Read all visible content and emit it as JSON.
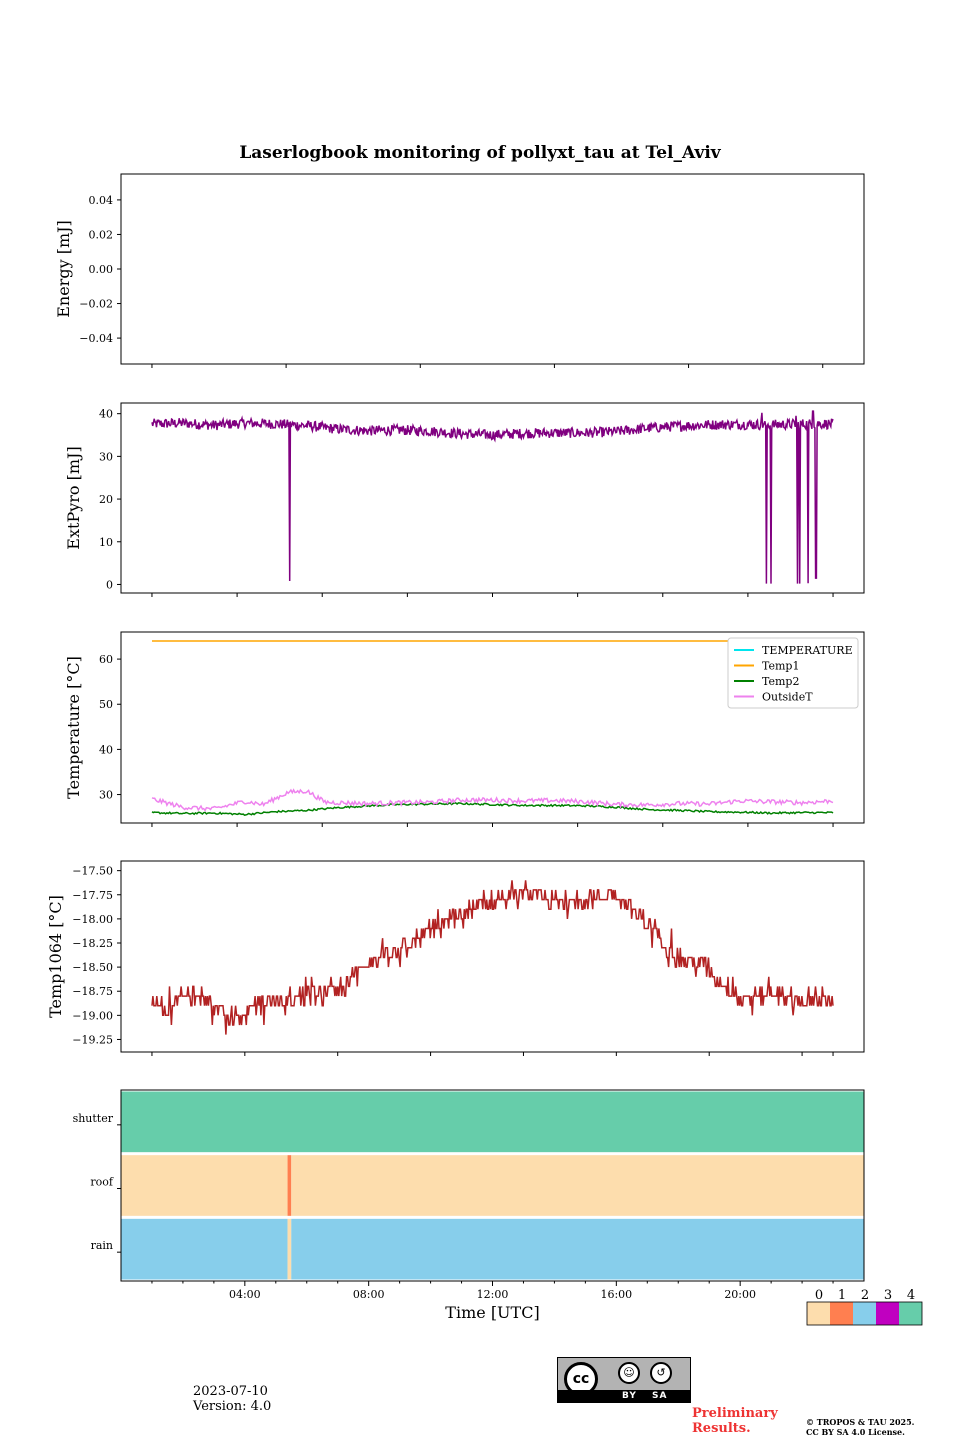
{
  "title": "Laserlogbook monitoring of pollyxt_tau at Tel_Aviv",
  "footer": {
    "date": "2023-07-10",
    "version": "Version: 4.0",
    "preliminary": "Preliminary Results.",
    "copyright_line1": "© TROPOS & TAU 2025.",
    "copyright_line2": "CC BY SA 4.0 License.",
    "license_badge": {
      "logo": "cc",
      "labels": [
        "BY",
        "SA"
      ]
    }
  },
  "chart_data": [
    {
      "type": "line",
      "ylabel": "Energy [mJ]",
      "ylim": [
        -0.055,
        0.055
      ],
      "yticks": [
        -0.04,
        -0.02,
        0.0,
        0.02,
        0.04
      ],
      "ytick_labels": [
        "−0.04",
        "−0.02",
        "0.00",
        "0.02",
        "0.04"
      ],
      "xticks_hours": [
        1,
        5.333,
        9.667,
        14,
        18.333,
        22.667
      ],
      "series": []
    },
    {
      "type": "line",
      "ylabel": "ExtPyro [mJ]",
      "ylim": [
        -2,
        42.5
      ],
      "yticks": [
        0,
        10,
        20,
        30,
        40
      ],
      "xticks_hours": [
        1,
        3.75,
        6.5,
        9.25,
        12,
        14.75,
        17.5,
        20.25,
        23
      ],
      "series": [
        {
          "color": "#800080",
          "baseline": [
            [
              1,
              37.6
            ],
            [
              2,
              37.8
            ],
            [
              3,
              37.3
            ],
            [
              4,
              37.8
            ],
            [
              5,
              37.6
            ],
            [
              6,
              37.2
            ],
            [
              7,
              36.4
            ],
            [
              8,
              36.0
            ],
            [
              9,
              36.2
            ],
            [
              10,
              35.9
            ],
            [
              11,
              35.3
            ],
            [
              12,
              35.0
            ],
            [
              13,
              35.4
            ],
            [
              14,
              35.5
            ],
            [
              15,
              35.5
            ],
            [
              16,
              35.8
            ],
            [
              17,
              36.6
            ],
            [
              18,
              37.1
            ],
            [
              19,
              37.4
            ],
            [
              20,
              37.5
            ],
            [
              21,
              37.4
            ],
            [
              22,
              37.6
            ],
            [
              23,
              37.6
            ]
          ],
          "noise": 1.2,
          "dropouts": [
            [
              5.45,
              0.8
            ],
            [
              20.85,
              0.2
            ],
            [
              21.0,
              0.2
            ],
            [
              21.85,
              0.2
            ],
            [
              21.93,
              0.2
            ],
            [
              22.2,
              0.3
            ],
            [
              22.45,
              1.5
            ]
          ],
          "spikes": [
            [
              20.7,
              40.2
            ],
            [
              21.8,
              39.5
            ],
            [
              22.35,
              40.6
            ]
          ]
        }
      ]
    },
    {
      "type": "line",
      "ylabel": "Temperature [°C]",
      "ylim": [
        23.7,
        66.0
      ],
      "yticks": [
        30,
        40,
        50,
        60
      ],
      "xticks_hours": [
        1,
        3.75,
        6.5,
        9.25,
        12,
        14.75,
        17.5,
        20.25,
        23
      ],
      "legend_position": "upper right",
      "series": [
        {
          "name": "TEMPERATURE",
          "color": "#00e5ee",
          "points": []
        },
        {
          "name": "Temp1",
          "color": "#ffa500",
          "points": [
            [
              1,
              64
            ],
            [
              23,
              64
            ]
          ],
          "noise": 0
        },
        {
          "name": "Temp2",
          "color": "#008000",
          "points": [
            [
              1,
              26.0
            ],
            [
              2,
              25.8
            ],
            [
              3,
              25.9
            ],
            [
              4,
              25.6
            ],
            [
              5,
              26.2
            ],
            [
              6,
              26.5
            ],
            [
              7,
              27.1
            ],
            [
              8,
              27.5
            ],
            [
              9,
              27.8
            ],
            [
              10,
              27.9
            ],
            [
              11,
              28.0
            ],
            [
              12,
              27.8
            ],
            [
              13,
              27.6
            ],
            [
              14,
              27.6
            ],
            [
              15,
              27.5
            ],
            [
              16,
              27.2
            ],
            [
              17,
              26.7
            ],
            [
              18,
              26.5
            ],
            [
              19,
              26.2
            ],
            [
              20,
              26.1
            ],
            [
              21,
              25.9
            ],
            [
              22,
              26.0
            ],
            [
              23,
              26.0
            ]
          ],
          "noise": 0.2
        },
        {
          "name": "OutsideT",
          "color": "#ee82ee",
          "points": [
            [
              1,
              29.0
            ],
            [
              2,
              27.2
            ],
            [
              3,
              26.8
            ],
            [
              4,
              28.5
            ],
            [
              4.6,
              27.8
            ],
            [
              5.4,
              30.5
            ],
            [
              6.0,
              30.8
            ],
            [
              6.6,
              28.3
            ],
            [
              8,
              28.0
            ],
            [
              9,
              28.2
            ],
            [
              10,
              28.3
            ],
            [
              11,
              28.8
            ],
            [
              12,
              28.8
            ],
            [
              13,
              28.6
            ],
            [
              14,
              28.7
            ],
            [
              15,
              28.4
            ],
            [
              16,
              27.8
            ],
            [
              17,
              27.7
            ],
            [
              18,
              28.0
            ],
            [
              19,
              27.9
            ],
            [
              20,
              28.6
            ],
            [
              21,
              28.4
            ],
            [
              22,
              28.2
            ],
            [
              23,
              28.6
            ]
          ],
          "noise": 0.5
        }
      ]
    },
    {
      "type": "line",
      "ylabel": "Temp1064 [°C]",
      "ylim": [
        -19.38,
        -17.4
      ],
      "yticks": [
        -19.25,
        -19.0,
        -18.75,
        -18.5,
        -18.25,
        -18.0,
        -17.75,
        -17.5
      ],
      "ytick_labels": [
        "−19.25",
        "−19.00",
        "−18.75",
        "−18.50",
        "−18.25",
        "−18.00",
        "−17.75",
        "−17.50"
      ],
      "xticks_hours": [
        1,
        4,
        7,
        10,
        13,
        16,
        19,
        22,
        23
      ],
      "series": [
        {
          "color": "#b22222",
          "step": 0.1,
          "points": [
            [
              1,
              -18.85
            ],
            [
              1.5,
              -18.95
            ],
            [
              2,
              -18.8
            ],
            [
              2.5,
              -18.75
            ],
            [
              3,
              -18.9
            ],
            [
              3.5,
              -19.05
            ],
            [
              4,
              -19.0
            ],
            [
              4.5,
              -18.9
            ],
            [
              5,
              -18.85
            ],
            [
              6,
              -18.8
            ],
            [
              7,
              -18.7
            ],
            [
              8,
              -18.45
            ],
            [
              9,
              -18.35
            ],
            [
              10,
              -18.1
            ],
            [
              11,
              -17.95
            ],
            [
              12,
              -17.8
            ],
            [
              13,
              -17.75
            ],
            [
              14,
              -17.8
            ],
            [
              15,
              -17.8
            ],
            [
              16,
              -17.75
            ],
            [
              17,
              -18.05
            ],
            [
              18,
              -18.4
            ],
            [
              19,
              -18.5
            ],
            [
              20,
              -18.85
            ],
            [
              21,
              -18.75
            ],
            [
              22,
              -18.85
            ],
            [
              23,
              -18.8
            ]
          ],
          "noise": 0.09
        }
      ]
    },
    {
      "type": "heatmap",
      "rows": [
        "shutter",
        "roof",
        "rain"
      ],
      "x_range_hours": [
        0,
        24
      ],
      "xticks": [
        "04:00",
        "08:00",
        "12:00",
        "16:00",
        "20:00"
      ],
      "xtick_hours": [
        4,
        8,
        12,
        16,
        20
      ],
      "xlabel": "Time [UTC]",
      "status_colors": [
        "#fdddad",
        "#ff7f50",
        "#87ceeb",
        "#c000c0",
        "#66cdaa"
      ],
      "colorbar_labels": [
        "0",
        "1",
        "2",
        "3",
        "4"
      ],
      "segments": [
        {
          "row": "shutter",
          "from": 0,
          "to": 24,
          "status": 4
        },
        {
          "row": "roof",
          "from": 0,
          "to": 5.38,
          "status": 0
        },
        {
          "row": "roof",
          "from": 5.38,
          "to": 5.5,
          "status": 1
        },
        {
          "row": "roof",
          "from": 5.5,
          "to": 24,
          "status": 0
        },
        {
          "row": "rain",
          "from": 0,
          "to": 5.38,
          "status": 2
        },
        {
          "row": "rain",
          "from": 5.38,
          "to": 5.5,
          "status": 0
        },
        {
          "row": "rain",
          "from": 5.5,
          "to": 24,
          "status": 2
        }
      ]
    }
  ]
}
